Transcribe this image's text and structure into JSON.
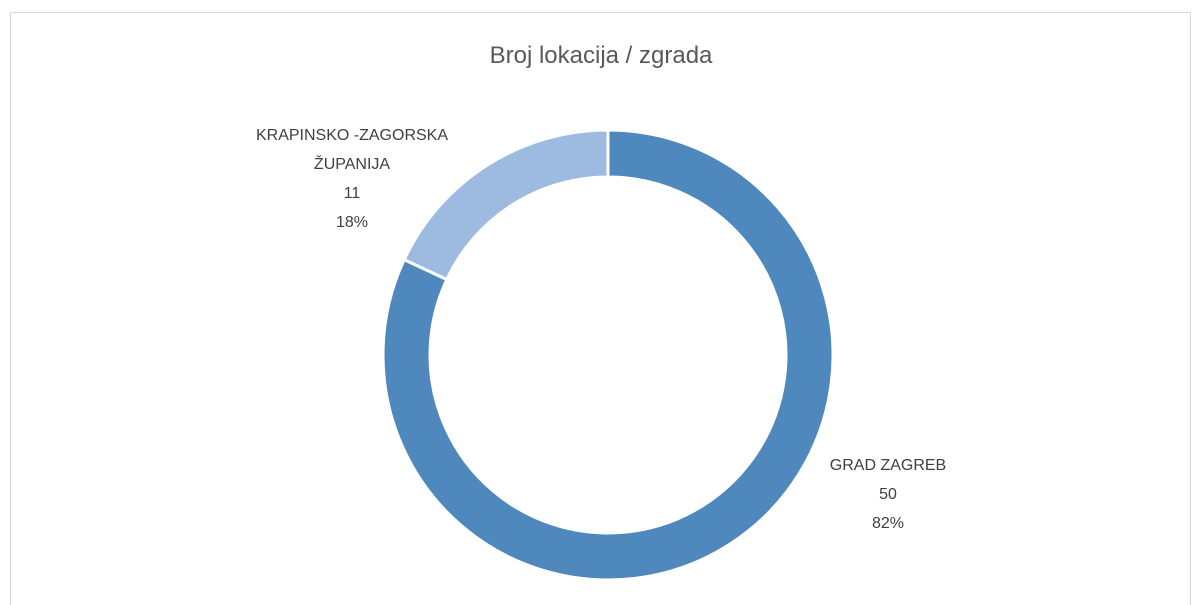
{
  "chart_data": {
    "type": "donut",
    "title": "Broj lokacija / zgrada",
    "categories": [
      "GRAD ZAGREB",
      "KRAPINSKO -ZAGORSKA ŽUPANIJA"
    ],
    "values": [
      50,
      11
    ],
    "percentages": [
      82,
      18
    ],
    "percentage_labels": [
      "82%",
      "18%"
    ],
    "colors": [
      "#4f88bd",
      "#9dbbe1"
    ]
  }
}
